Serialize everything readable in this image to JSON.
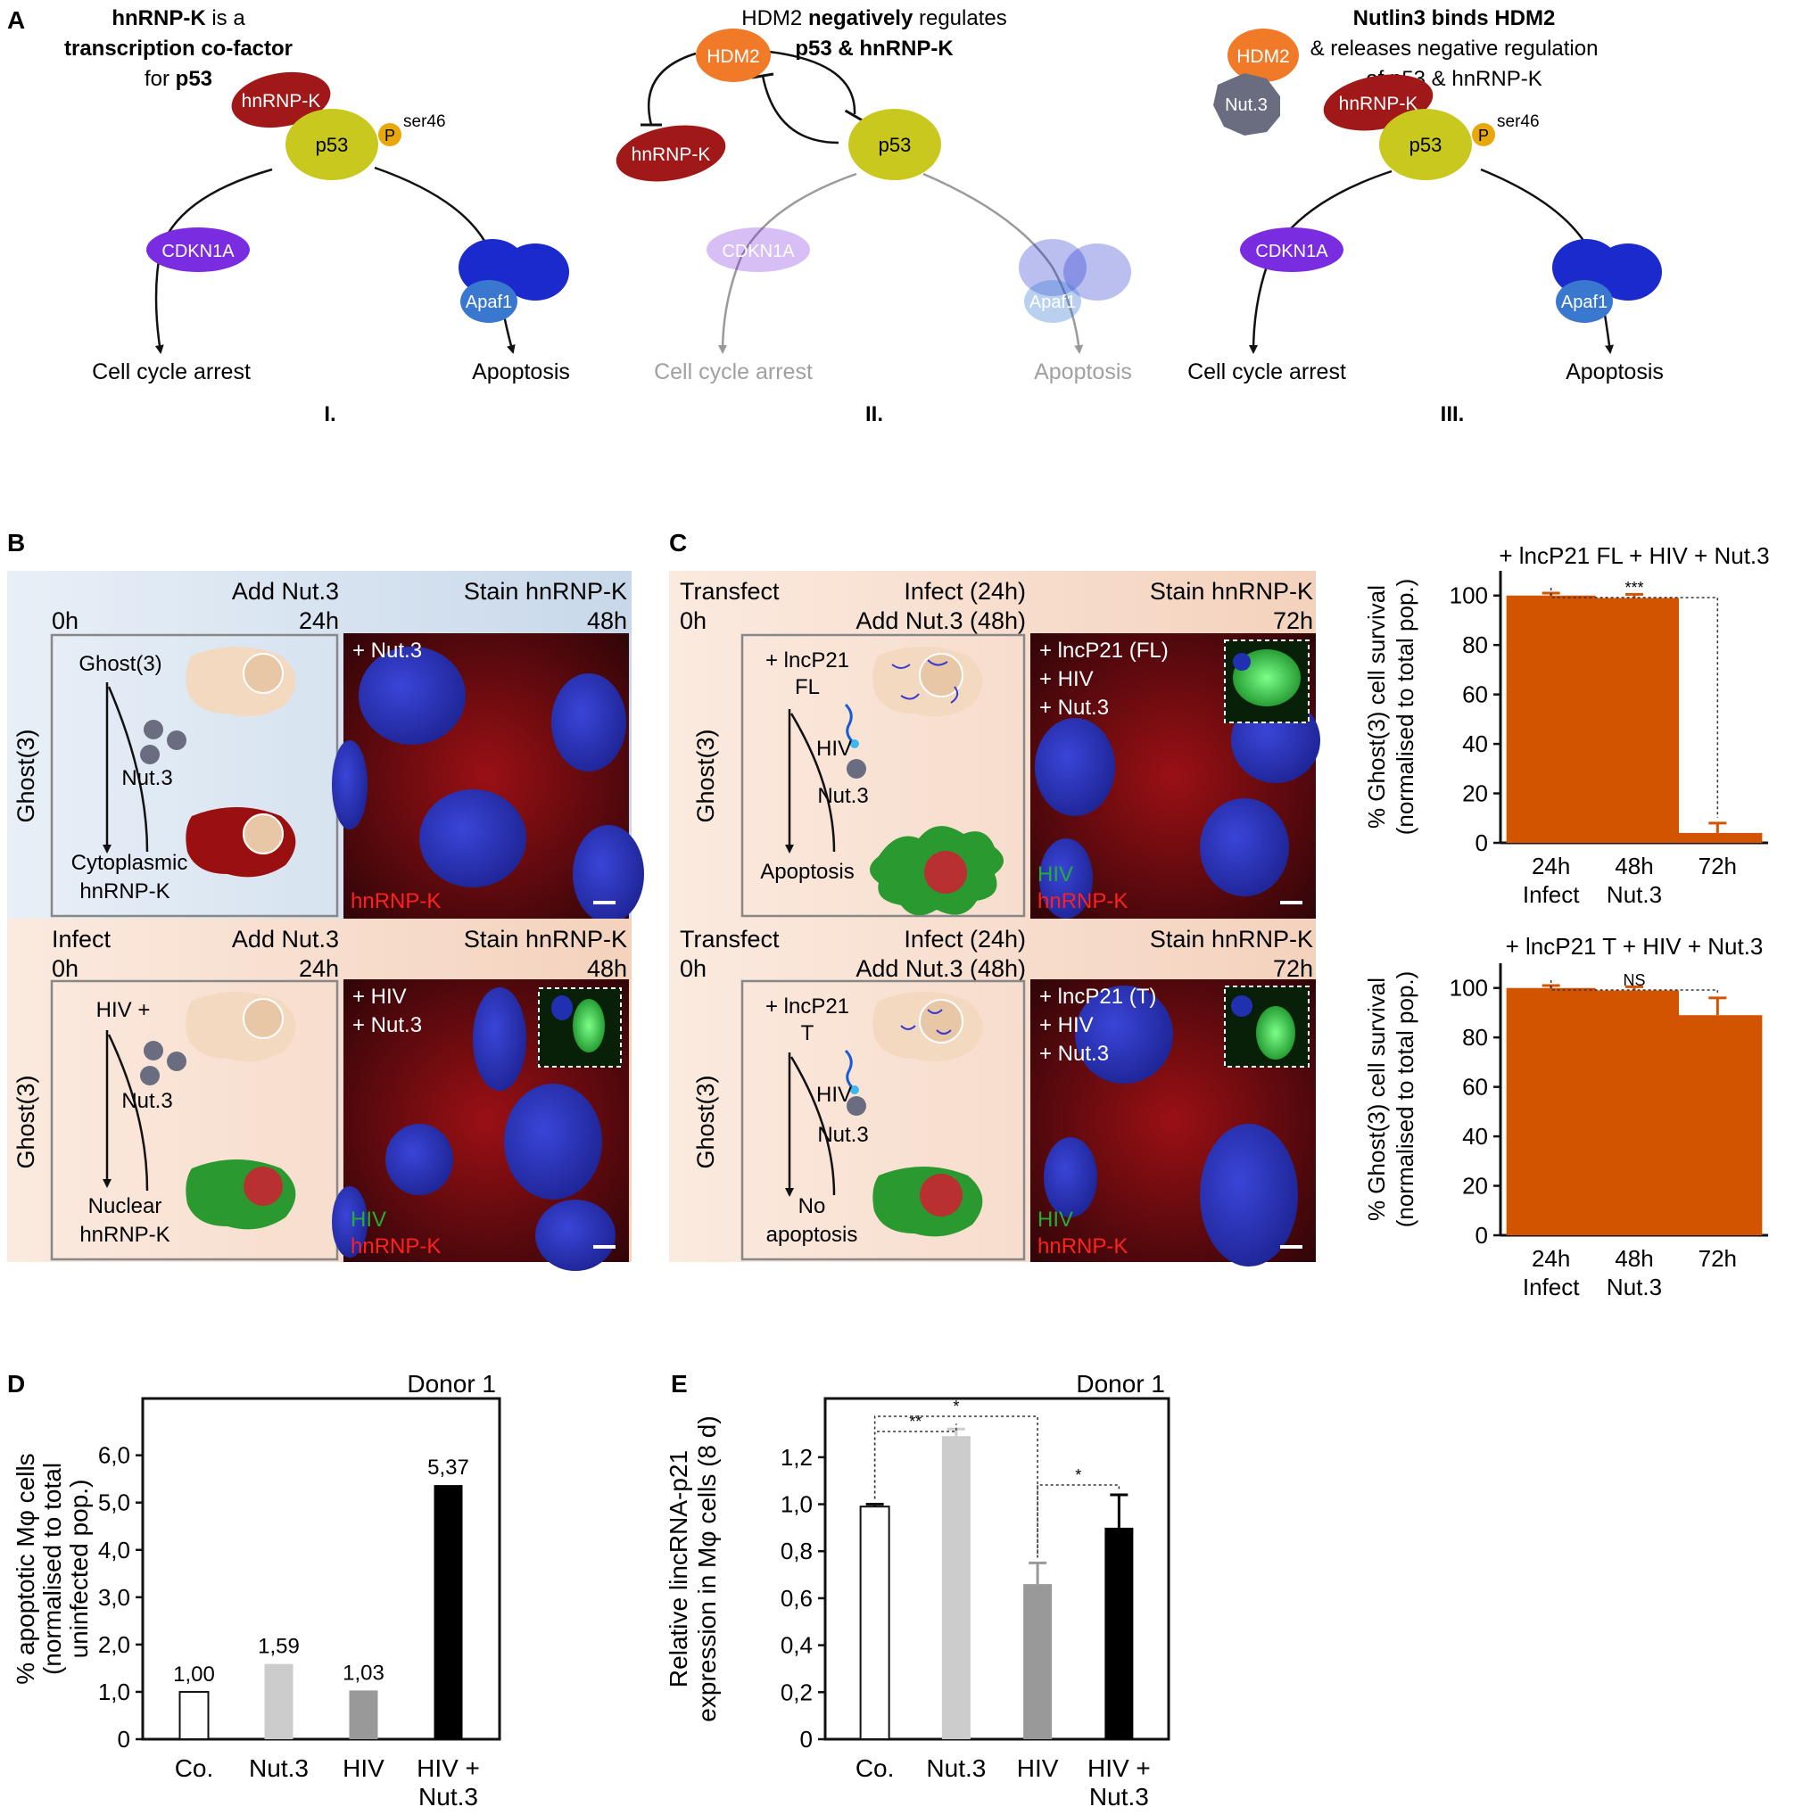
{
  "colors": {
    "orange_bar": "#d35400",
    "green": "#1e9a2c",
    "red": "#e01010",
    "nucleus_blue": "#2530c0",
    "blue_panel": "#dbe6f2",
    "peach_panel": "#f7dccb",
    "olive_p53": "#c8c81e",
    "hnrnpk_red": "#a01818",
    "cdkn1a_purple": "#7a2ce0",
    "hdm2_orange": "#f07a28",
    "apaf1_blue": "#3a78d0"
  },
  "panelA": {
    "letter": "A",
    "I": {
      "title_line1_bold": "hnRNP-K",
      "title_line1_rest": " is a",
      "title_line2": "transcription co-factor",
      "title_line3_pre": "for ",
      "title_line3_bold": "p53",
      "hnrnpk": "hnRNP-K",
      "p53": "p53",
      "phospho": "P",
      "ser46": "ser46",
      "cdkn1a": "CDKN1A",
      "apaf1": "Apaf1",
      "arrest": "Cell cycle arrest",
      "apoptosis": "Apoptosis",
      "numeral": "I."
    },
    "II": {
      "title_line1_pre": "HDM2 ",
      "title_line1_bold": "negatively",
      "title_line1_rest": " regulates",
      "title_line2": "p53 & hnRNP-K",
      "hdm2": "HDM2",
      "hnrnpk": "hnRNP-K",
      "p53": "p53",
      "cdkn1a": "CDKN1A",
      "apaf1": "Apaf1",
      "arrest": "Cell cycle arrest",
      "apoptosis": "Apoptosis",
      "numeral": "II."
    },
    "III": {
      "title_line1": "Nutlin3 binds HDM2",
      "title_line2": "& releases negative regulation",
      "title_line3": "of p53 & hnRNP-K",
      "hdm2": "HDM2",
      "nut3": "Nut.3",
      "hnrnpk": "hnRNP-K",
      "p53": "p53",
      "phospho": "P",
      "ser46": "ser46",
      "cdkn1a": "CDKN1A",
      "apaf1": "Apaf1",
      "arrest": "Cell cycle arrest",
      "apoptosis": "Apoptosis",
      "numeral": "III."
    }
  },
  "panelB": {
    "letter": "B",
    "top": {
      "t0": "0h",
      "add": "Add Nut.3",
      "t24": "24h",
      "stain": "Stain hnRNP-K",
      "t48": "48h",
      "side": "Ghost(3)",
      "cell": "Ghost(3)",
      "drug": "Nut.3",
      "result_line1": "Cytoplasmic",
      "result_line2": "hnRNP-K",
      "img_label": "+ Nut.3",
      "img_stain": "hnRNP-K"
    },
    "bottom": {
      "infect": "Infect",
      "t0": "0h",
      "add": "Add Nut.3",
      "t24": "24h",
      "stain": "Stain hnRNP-K",
      "t48": "48h",
      "side": "Ghost(3)",
      "cell": "HIV +",
      "drug": "Nut.3",
      "result_line1": "Nuclear",
      "result_line2": "hnRNP-K",
      "img_label1": "+ HIV",
      "img_label2": "+ Nut.3",
      "img_hiv": "HIV",
      "img_stain": "hnRNP-K"
    }
  },
  "panelC": {
    "letter": "C",
    "top": {
      "transfect": "Transfect",
      "t0": "0h",
      "infect": "Infect (24h)",
      "add": "Add Nut.3 (48h)",
      "stain": "Stain hnRNP-K",
      "t72": "72h",
      "side": "Ghost(3)",
      "construct1": "+ lncP21",
      "construct2": "FL",
      "virus": "HIV",
      "drug": "Nut.3",
      "result": "Apoptosis",
      "img_label1": "+ lncP21 (FL)",
      "img_label2": "+ HIV",
      "img_label3": "+ Nut.3",
      "img_hiv": "HIV",
      "img_stain": "hnRNP-K"
    },
    "bottom": {
      "transfect": "Transfect",
      "t0": "0h",
      "infect": "Infect (24h)",
      "add": "Add Nut.3 (48h)",
      "stain": "Stain hnRNP-K",
      "t72": "72h",
      "side": "Ghost(3)",
      "construct1": "+ lncP21",
      "construct2": "T",
      "virus": "HIV",
      "drug": "Nut.3",
      "result_line1": "No",
      "result_line2": "apoptosis",
      "img_label1": "+ lncP21 (T)",
      "img_label2": "+ HIV",
      "img_label3": "+ Nut.3",
      "img_hiv": "HIV",
      "img_stain": "hnRNP-K"
    }
  },
  "chart_data": [
    {
      "type": "bar",
      "panel": "C",
      "title": "+ lncP21 FL + HIV + Nut.3",
      "ylabel_line1": "% Ghost(3) cell survival",
      "ylabel_line2": "(normalised to total pop.)",
      "categories": [
        [
          "24h",
          "Infect"
        ],
        [
          "48h",
          "Nut.3"
        ],
        [
          "72h",
          ""
        ]
      ],
      "values": [
        100,
        99,
        4
      ],
      "errors": [
        1,
        1.5,
        4
      ],
      "ylim": [
        0,
        110
      ],
      "yticks": [
        "0",
        "20",
        "40",
        "60",
        "80",
        "100"
      ],
      "significance": "***",
      "sig_between": [
        0,
        2
      ]
    },
    {
      "type": "bar",
      "panel": "C",
      "title": "+ lncP21 T + HIV + Nut.3",
      "ylabel_line1": "% Ghost(3) cell survival",
      "ylabel_line2": "(normalised to total pop.)",
      "categories": [
        [
          "24h",
          "Infect"
        ],
        [
          "48h",
          "Nut.3"
        ],
        [
          "72h",
          ""
        ]
      ],
      "values": [
        100,
        99,
        89
      ],
      "errors": [
        1,
        1.5,
        7
      ],
      "ylim": [
        0,
        110
      ],
      "yticks": [
        "0",
        "20",
        "40",
        "60",
        "80",
        "100"
      ],
      "significance": "NS",
      "sig_between": [
        0,
        2
      ]
    },
    {
      "type": "bar",
      "panel": "D",
      "letter": "D",
      "title": "Donor 1",
      "ylabel_line1": "% apoptotic Mφ cells",
      "ylabel_line2": "(normalised to total",
      "ylabel_line3": "uninfected pop.)",
      "categories": [
        [
          "Co.",
          ""
        ],
        [
          "Nut.3",
          ""
        ],
        [
          "HIV",
          ""
        ],
        [
          "HIV +",
          "Nut.3"
        ]
      ],
      "values": [
        1.0,
        1.59,
        1.03,
        5.37
      ],
      "value_labels": [
        "1,00",
        "1,59",
        "1,03",
        "5,37"
      ],
      "ylim": [
        0,
        7.2
      ],
      "yticks": [
        "0",
        "1,0",
        "2,0",
        "3,0",
        "4,0",
        "5,0",
        "6,0"
      ]
    },
    {
      "type": "bar",
      "panel": "E",
      "letter": "E",
      "title": "Donor 1",
      "ylabel_line1": "Relative lincRNA-p21",
      "ylabel_line2": "expression in Mφ cells (8 d)",
      "categories": [
        [
          "Co.",
          ""
        ],
        [
          "Nut.3",
          ""
        ],
        [
          "HIV",
          ""
        ],
        [
          "HIV +",
          "Nut.3"
        ]
      ],
      "values": [
        0.99,
        1.29,
        0.66,
        0.9
      ],
      "errors": [
        0.01,
        0.03,
        0.09,
        0.14
      ],
      "ylim": [
        0,
        1.45
      ],
      "yticks": [
        "0",
        "0,2",
        "0,4",
        "0,6",
        "0,8",
        "1,0",
        "1,2"
      ],
      "significance": [
        {
          "label": "**",
          "between": [
            0,
            1
          ]
        },
        {
          "label": "*",
          "between": [
            0,
            2
          ]
        },
        {
          "label": "*",
          "between": [
            2,
            3
          ]
        }
      ]
    }
  ]
}
